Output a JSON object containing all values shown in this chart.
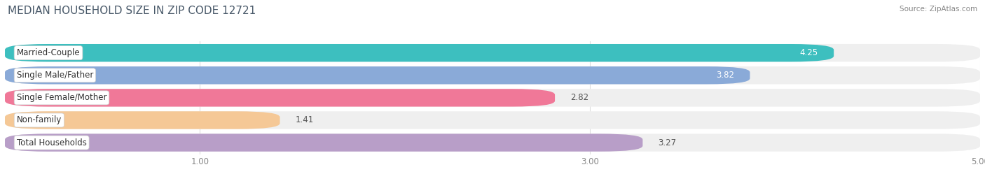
{
  "title": "MEDIAN HOUSEHOLD SIZE IN ZIP CODE 12721",
  "source": "Source: ZipAtlas.com",
  "categories": [
    "Married-Couple",
    "Single Male/Father",
    "Single Female/Mother",
    "Non-family",
    "Total Households"
  ],
  "values": [
    4.25,
    3.82,
    2.82,
    1.41,
    3.27
  ],
  "bar_colors": [
    "#3dbfbf",
    "#8aaad8",
    "#f07898",
    "#f5c896",
    "#b89ec8"
  ],
  "value_inside": [
    true,
    true,
    false,
    false,
    false
  ],
  "bar_bg_color": "#efefef",
  "xlim": [
    0,
    5.0
  ],
  "xstart": 0.0,
  "xticks": [
    1.0,
    3.0,
    5.0
  ],
  "label_fontsize": 8.5,
  "value_fontsize": 8.5,
  "title_fontsize": 11,
  "bar_height": 0.68,
  "bar_gap": 0.18,
  "fig_bg_color": "#ffffff",
  "title_color": "#4a5a6a",
  "source_color": "#888888",
  "grid_color": "#dddddd",
  "tick_color": "#888888"
}
